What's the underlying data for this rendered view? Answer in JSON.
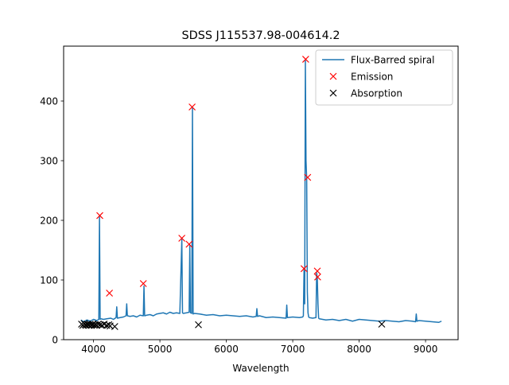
{
  "chart_data": {
    "type": "line",
    "title": "SDSS J115537.98-004614.2",
    "xlabel": "Wavelength",
    "ylabel": "",
    "xlim": [
      3550,
      9490
    ],
    "ylim": [
      0,
      492
    ],
    "x_ticks": [
      4000,
      5000,
      6000,
      7000,
      8000,
      9000
    ],
    "y_ticks": [
      0,
      100,
      200,
      300,
      400
    ],
    "grid": false,
    "legend_position": "top-right",
    "series": [
      {
        "name": "Flux-Barred spiral",
        "style": "line",
        "color": "#1f77b4",
        "x": [
          3810,
          3850,
          3900,
          3950,
          4000,
          4050,
          4080,
          4090,
          4100,
          4110,
          4150,
          4200,
          4260,
          4300,
          4340,
          4350,
          4360,
          4400,
          4450,
          4490,
          4500,
          4510,
          4550,
          4600,
          4650,
          4700,
          4750,
          4760,
          4770,
          4800,
          4850,
          4900,
          4950,
          5000,
          5050,
          5100,
          5150,
          5200,
          5250,
          5300,
          5330,
          5340,
          5350,
          5400,
          5440,
          5450,
          5460,
          5480,
          5490,
          5500,
          5520,
          5600,
          5700,
          5800,
          5900,
          6000,
          6100,
          6200,
          6300,
          6400,
          6450,
          6460,
          6470,
          6500,
          6600,
          6700,
          6800,
          6900,
          6910,
          6920,
          7000,
          7100,
          7150,
          7160,
          7170,
          7180,
          7190,
          7200,
          7210,
          7220,
          7230,
          7240,
          7250,
          7300,
          7350,
          7360,
          7370,
          7380,
          7390,
          7400,
          7500,
          7600,
          7700,
          7800,
          7900,
          8000,
          8100,
          8200,
          8300,
          8400,
          8500,
          8600,
          8700,
          8800,
          8850,
          8860,
          8870,
          8900,
          9000,
          9100,
          9200,
          9240
        ],
        "y": [
          33,
          30,
          33,
          31,
          34,
          32,
          34,
          207,
          34,
          35,
          34,
          35,
          36,
          34,
          37,
          55,
          36,
          37,
          38,
          40,
          60,
          40,
          39,
          40,
          38,
          41,
          40,
          90,
          40,
          41,
          42,
          40,
          43,
          44,
          45,
          43,
          46,
          44,
          45,
          44,
          168,
          45,
          44,
          45,
          46,
          158,
          45,
          44,
          388,
          43,
          44,
          43,
          41,
          42,
          40,
          41,
          40,
          39,
          40,
          38,
          39,
          52,
          39,
          40,
          37,
          38,
          37,
          36,
          58,
          37,
          38,
          37,
          38,
          40,
          116,
          60,
          468,
          300,
          270,
          80,
          45,
          38,
          37,
          36,
          37,
          112,
          102,
          60,
          36,
          35,
          33,
          34,
          32,
          34,
          31,
          34,
          33,
          32,
          31,
          32,
          31,
          30,
          32,
          31,
          30,
          43,
          31,
          32,
          31,
          30,
          29,
          31
        ]
      },
      {
        "name": "Emission",
        "style": "marker",
        "marker": "x",
        "color": "#ff0000",
        "x": [
          4095,
          4240,
          4750,
          5330,
          5440,
          5485,
          7170,
          7195,
          7225,
          7370,
          7375
        ],
        "y": [
          208,
          78,
          94,
          170,
          160,
          390,
          119,
          470,
          272,
          115,
          105
        ]
      },
      {
        "name": "Absorption",
        "style": "marker",
        "marker": "x",
        "color": "#000000",
        "x": [
          3820,
          3840,
          3860,
          3875,
          3890,
          3905,
          3920,
          3935,
          3950,
          3965,
          3980,
          3995,
          4010,
          4030,
          4050,
          4070,
          4100,
          4130,
          4160,
          4200,
          4230,
          4250,
          4320,
          5580,
          8340
        ],
        "y": [
          26,
          24,
          27,
          25,
          24,
          26,
          25,
          24,
          26,
          24,
          25,
          26,
          24,
          25,
          24,
          26,
          25,
          24,
          26,
          24,
          25,
          23,
          22,
          25,
          26
        ]
      }
    ]
  }
}
